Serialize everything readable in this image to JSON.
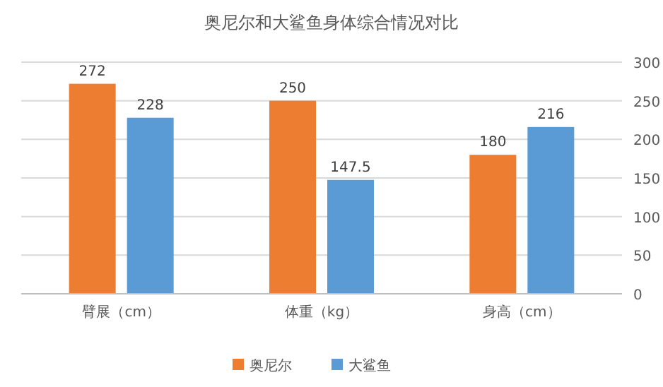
{
  "chart_data": {
    "type": "bar",
    "title": "奥尼尔和大鲨鱼身体综合情况对比",
    "categories": [
      "臂展（cm）",
      "体重（kg）",
      "身高（cm）"
    ],
    "series": [
      {
        "name": "奥尼尔",
        "color": "#ed7d31",
        "values": [
          272,
          250,
          180
        ]
      },
      {
        "name": "大鲨鱼",
        "color": "#5b9bd5",
        "values": [
          228,
          147.5,
          216
        ]
      }
    ],
    "data_labels": true,
    "ylim": [
      0,
      300
    ],
    "yticks": [
      0,
      50,
      100,
      150,
      200,
      250,
      300
    ],
    "grid": "y",
    "legend": "bottom"
  }
}
